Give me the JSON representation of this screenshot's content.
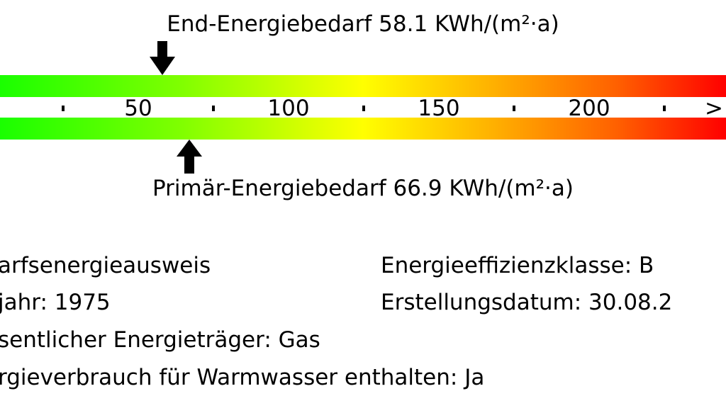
{
  "chart_data": {
    "type": "bar",
    "title": "",
    "ticks": [
      "50",
      "100",
      "150",
      "200"
    ],
    "tick_values": [
      50,
      100,
      150,
      200
    ],
    "dot_values": [
      25,
      75,
      125,
      175,
      225
    ],
    "overflow_label": ">",
    "xlim": [
      0,
      245
    ],
    "gradient_colors": [
      "#1aff00",
      "#ffff00",
      "#ff0000"
    ],
    "end_energy": {
      "label": "End-Energiebedarf 58.1 KWh/(m²·a)",
      "value": 58.1
    },
    "primary_energy": {
      "label": "Primär-Energiebedarf 66.9 KWh/(m²·a)",
      "value": 66.9
    }
  },
  "info": {
    "left": [
      "arfsenergieausweis",
      "jahr: 1975",
      "sentlicher Energieträger: Gas",
      "rgieverbrauch für Warmwasser enthalten: Ja"
    ],
    "right": [
      "Energieeffizienzklasse: B",
      "Erstellungsdatum: 30.08.2"
    ]
  }
}
